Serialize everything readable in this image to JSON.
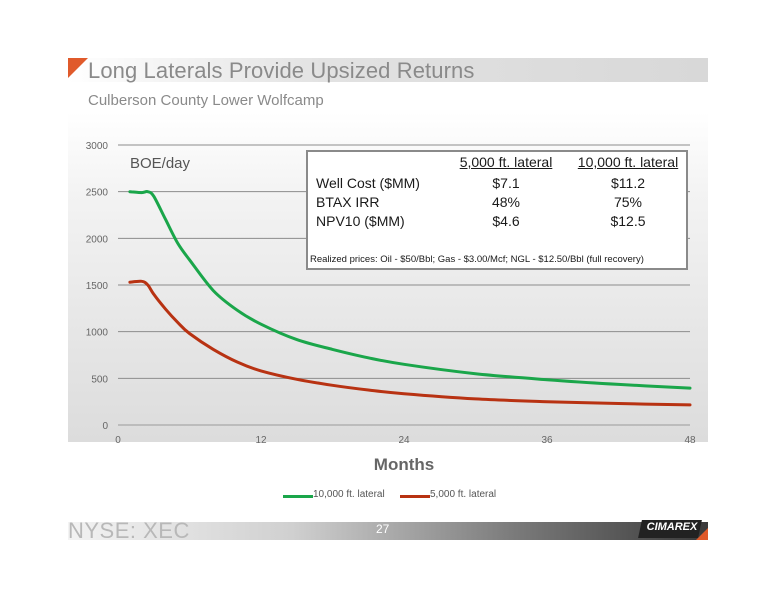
{
  "slide": {
    "title": "Long Laterals Provide Upsized Returns",
    "subtitle": "Culberson County Lower Wolfcamp",
    "footer_ticker": "NYSE: XEC",
    "page_number": "27",
    "logo_text": "CIMAREX",
    "accent_color": "#e05a2b"
  },
  "info_box": {
    "col_headers": [
      "5,000 ft. lateral",
      "10,000 ft. lateral"
    ],
    "rows": [
      {
        "label": "Well Cost ($MM)",
        "v5000": "$7.1",
        "v10000": "$11.2"
      },
      {
        "label": "BTAX IRR",
        "v5000": "48%",
        "v10000": "75%"
      },
      {
        "label": "NPV10 ($MM)",
        "v5000": "$4.6",
        "v10000": "$12.5"
      }
    ],
    "prices_note": "Realized prices:  Oil - $50/Bbl; Gas - $3.00/Mcf; NGL - $12.50/Bbl (full recovery)"
  },
  "chart_data": {
    "type": "line",
    "title": "",
    "ylabel": "BOE/day",
    "xlabel": "Months",
    "xlim": [
      0,
      48
    ],
    "ylim": [
      0,
      3000
    ],
    "xticks": [
      0,
      12,
      24,
      36,
      48
    ],
    "yticks": [
      0,
      500,
      1000,
      1500,
      2000,
      2500,
      3000
    ],
    "grid": true,
    "legend_position": "bottom",
    "x": [
      1,
      2,
      2.5,
      3,
      4,
      5,
      6,
      8,
      10,
      12,
      15,
      18,
      21,
      24,
      30,
      36,
      42,
      48
    ],
    "series": [
      {
        "name": "10,000 ft. lateral",
        "color": "#1aa64a",
        "values": [
          2500,
          2490,
          2500,
          2450,
          2200,
          1950,
          1770,
          1440,
          1230,
          1080,
          915,
          810,
          720,
          650,
          550,
          485,
          435,
          395
        ]
      },
      {
        "name": "5,000 ft. lateral",
        "color": "#b83212",
        "values": [
          1530,
          1540,
          1500,
          1400,
          1240,
          1100,
          980,
          810,
          675,
          580,
          490,
          425,
          375,
          335,
          280,
          250,
          230,
          215
        ]
      }
    ]
  }
}
